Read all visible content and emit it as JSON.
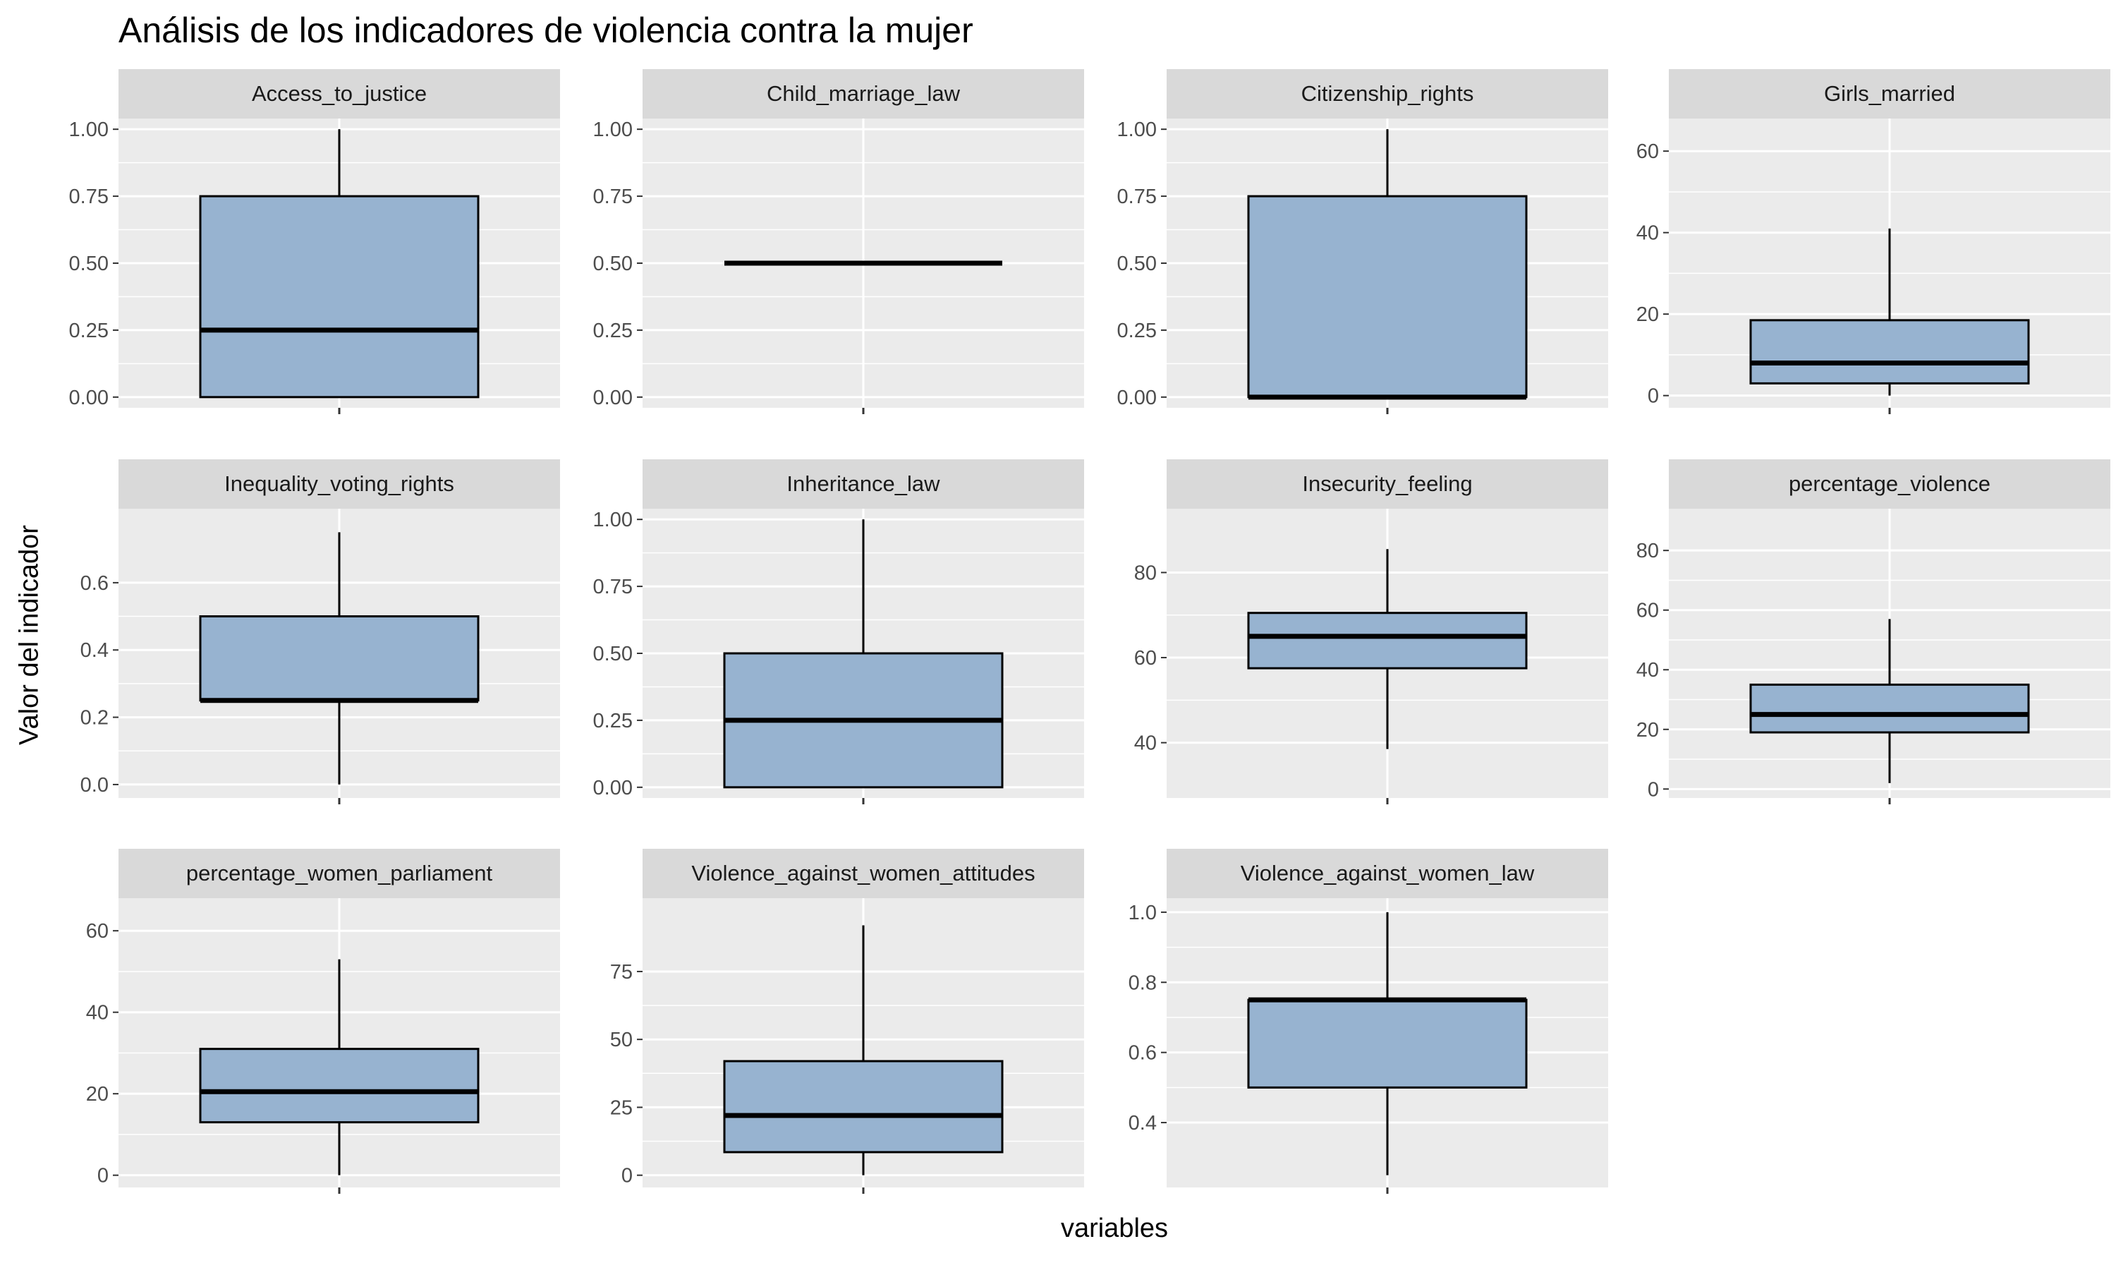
{
  "chart_data": {
    "type": "boxplot",
    "title": "Análisis de los indicadores de violencia contra la mujer",
    "xlabel": "variables",
    "ylabel": "Valor del indicador",
    "grid": true,
    "colors": {
      "box_fill": "#97b3d0",
      "box_stroke": "#000000",
      "panel_bg": "#ebebeb",
      "strip_bg": "#d9d9d9",
      "grid": "#ffffff"
    },
    "panels": [
      {
        "name": "Access_to_justice",
        "ylim": [
          -0.04,
          1.04
        ],
        "ticks": [
          0,
          0.25,
          0.5,
          0.75,
          1
        ],
        "tick_labels": [
          "0.00",
          "0.25",
          "0.50",
          "0.75",
          "1.00"
        ],
        "min": 0,
        "q1": 0,
        "median": 0.25,
        "q3": 0.75,
        "max": 1
      },
      {
        "name": "Child_marriage_law",
        "ylim": [
          -0.04,
          1.04
        ],
        "ticks": [
          0,
          0.25,
          0.5,
          0.75,
          1
        ],
        "tick_labels": [
          "0.00",
          "0.25",
          "0.50",
          "0.75",
          "1.00"
        ],
        "min": 0.5,
        "q1": 0.5,
        "median": 0.5,
        "q3": 0.5,
        "max": 0.5
      },
      {
        "name": "Citizenship_rights",
        "ylim": [
          -0.04,
          1.04
        ],
        "ticks": [
          0,
          0.25,
          0.5,
          0.75,
          1
        ],
        "tick_labels": [
          "0.00",
          "0.25",
          "0.50",
          "0.75",
          "1.00"
        ],
        "min": 0,
        "q1": 0,
        "median": 0,
        "q3": 0.75,
        "max": 1
      },
      {
        "name": "Girls_married",
        "ylim": [
          -3,
          68
        ],
        "ticks": [
          0,
          20,
          40,
          60
        ],
        "tick_labels": [
          "0",
          "20",
          "40",
          "60"
        ],
        "min": 0,
        "q1": 3,
        "median": 8,
        "q3": 18.5,
        "max": 41
      },
      {
        "name": "Inequality_voting_rights",
        "ylim": [
          -0.04,
          0.82
        ],
        "ticks": [
          0,
          0.2,
          0.4,
          0.6
        ],
        "tick_labels": [
          "0.0",
          "0.2",
          "0.4",
          "0.6"
        ],
        "min": 0,
        "q1": 0.25,
        "median": 0.25,
        "q3": 0.5,
        "max": 0.75
      },
      {
        "name": "Inheritance_law",
        "ylim": [
          -0.04,
          1.04
        ],
        "ticks": [
          0,
          0.25,
          0.5,
          0.75,
          1
        ],
        "tick_labels": [
          "0.00",
          "0.25",
          "0.50",
          "0.75",
          "1.00"
        ],
        "min": 0,
        "q1": 0,
        "median": 0.25,
        "q3": 0.5,
        "max": 1
      },
      {
        "name": "Insecurity_feeling",
        "ylim": [
          27,
          95
        ],
        "ticks": [
          40,
          60,
          80
        ],
        "tick_labels": [
          "40",
          "60",
          "80"
        ],
        "min": 38.5,
        "q1": 57.5,
        "median": 65,
        "q3": 70.5,
        "max": 85.5
      },
      {
        "name": "percentage_violence",
        "ylim": [
          -3,
          94
        ],
        "ticks": [
          0,
          20,
          40,
          60,
          80
        ],
        "tick_labels": [
          "0",
          "20",
          "40",
          "60",
          "80"
        ],
        "min": 2,
        "q1": 19,
        "median": 25,
        "q3": 35,
        "max": 57
      },
      {
        "name": "percentage_women_parliament",
        "ylim": [
          -3,
          68
        ],
        "ticks": [
          0,
          20,
          40,
          60
        ],
        "tick_labels": [
          "0",
          "20",
          "40",
          "60"
        ],
        "min": 0,
        "q1": 13,
        "median": 20.5,
        "q3": 31,
        "max": 53
      },
      {
        "name": "Violence_against_women_attitudes",
        "ylim": [
          -4.5,
          102
        ],
        "ticks": [
          0,
          25,
          50,
          75
        ],
        "tick_labels": [
          "0",
          "25",
          "50",
          "75"
        ],
        "min": 0,
        "q1": 8.5,
        "median": 22,
        "q3": 42,
        "max": 92
      },
      {
        "name": "Violence_against_women_law",
        "ylim": [
          0.215,
          1.04
        ],
        "ticks": [
          0.4,
          0.6,
          0.8,
          1.0
        ],
        "tick_labels": [
          "0.4",
          "0.6",
          "0.8",
          "1.0"
        ],
        "min": 0.25,
        "q1": 0.5,
        "median": 0.75,
        "q3": 0.75,
        "max": 1
      }
    ]
  }
}
